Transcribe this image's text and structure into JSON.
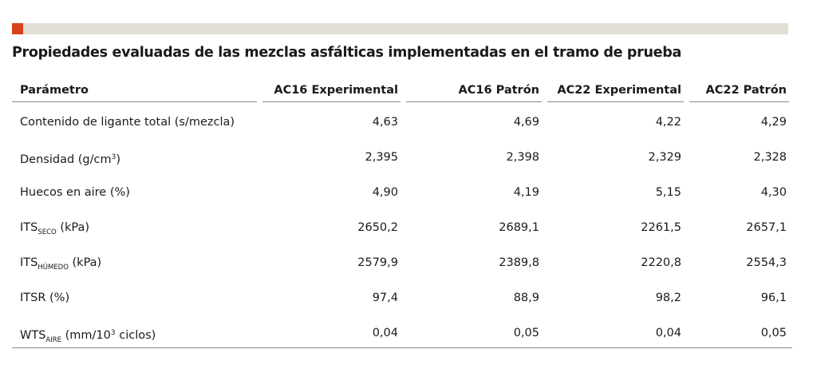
{
  "title": "Propiedades evaluadas de las mezclas asfálticas implementadas en el tramo de prueba",
  "colors": {
    "accent": "#d9401c",
    "bar": "#e3ded6"
  },
  "headers": [
    "Parámetro",
    "AC16 Experimental",
    "AC16 Patrón",
    "AC22 Experimental",
    "AC22 Patrón"
  ],
  "rows": [
    {
      "param": "Contenido de ligante total (s/mezcla)",
      "values": [
        "4,63",
        "4,69",
        "4,22",
        "4,29"
      ]
    },
    {
      "param_main": "Densidad (g/cm",
      "param_sup": "3",
      "param_tail": ")",
      "values": [
        "2,395",
        "2,398",
        "2,329",
        "2,328"
      ]
    },
    {
      "param": "Huecos en aire (%)",
      "values": [
        "4,90",
        "4,19",
        "5,15",
        "4,30"
      ]
    },
    {
      "param_main": "ITS",
      "param_sub": "SECO",
      "param_tail": " (kPa)",
      "values": [
        "2650,2",
        "2689,1",
        "2261,5",
        "2657,1"
      ]
    },
    {
      "param_main": "ITS",
      "param_sub": "HÚMEDO",
      "param_tail": " (kPa)",
      "values": [
        "2579,9",
        "2389,8",
        "2220,8",
        "2554,3"
      ]
    },
    {
      "param": "ITSR (%)",
      "values": [
        "97,4",
        "88,9",
        "98,2",
        "96,1"
      ]
    },
    {
      "param_main": "WTS",
      "param_sub": "AIRE",
      "param_mid": " (mm/10",
      "param_sup": "3",
      "param_tail": " ciclos)",
      "values": [
        "0,04",
        "0,05",
        "0,04",
        "0,05"
      ]
    }
  ]
}
